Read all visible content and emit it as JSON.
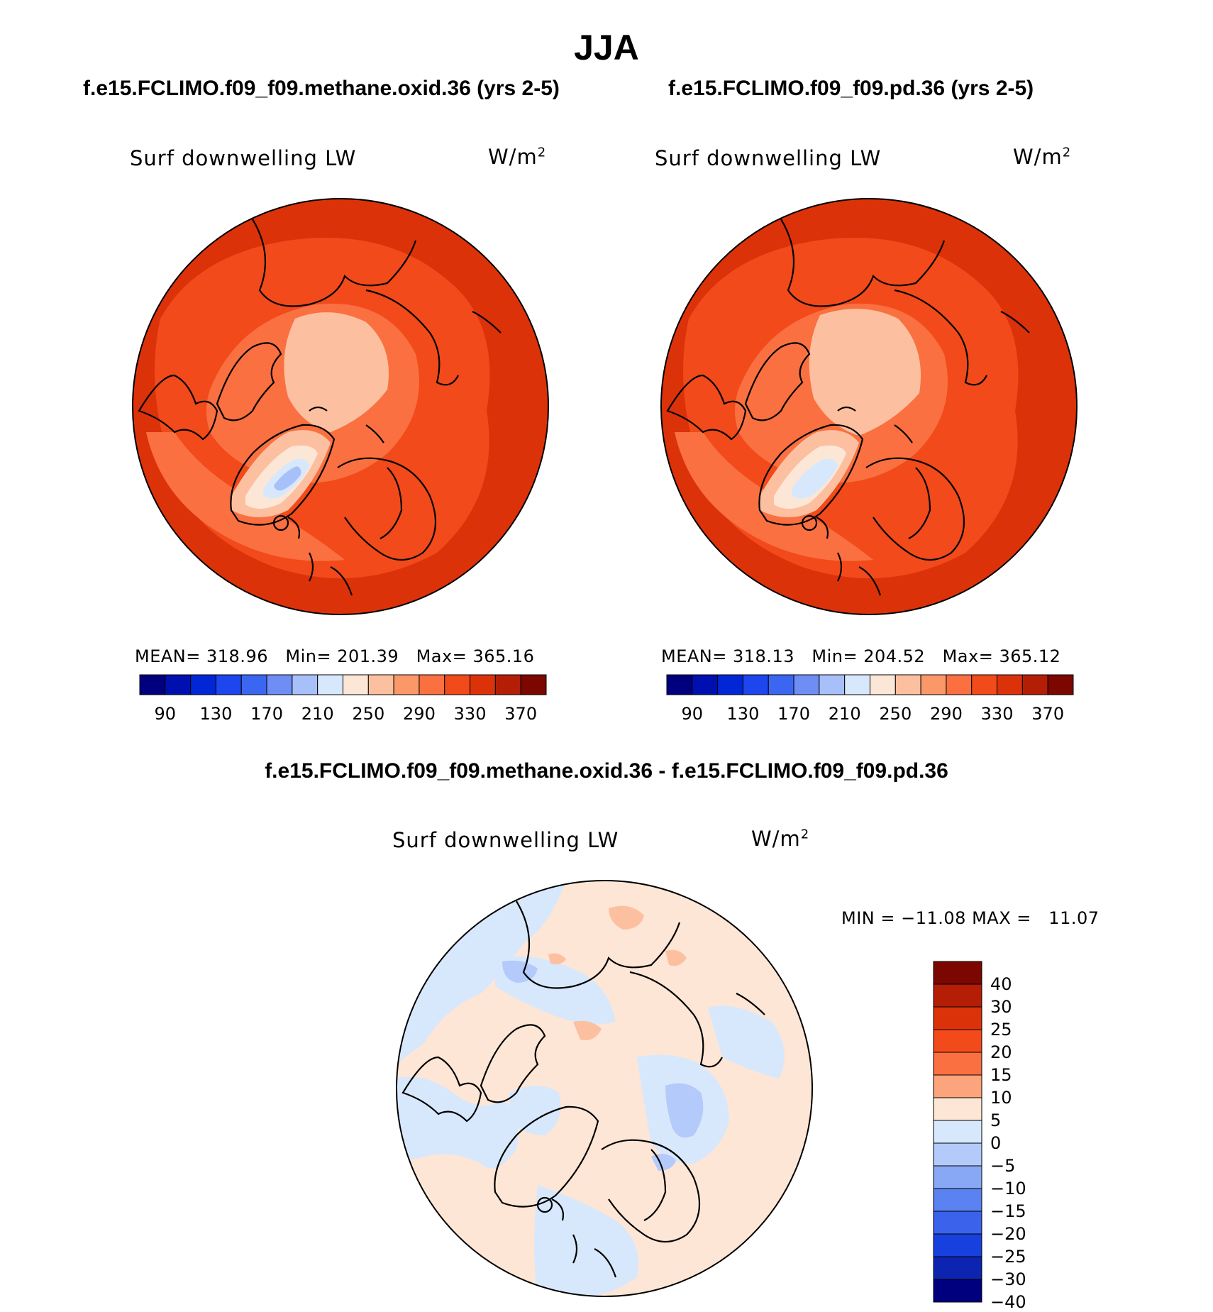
{
  "main_title": "JJA",
  "panels": [
    {
      "case_title": "f.e15.FCLIMO.f09_f09.methane.oxid.36 (yrs 2-5)",
      "variable": "Surf downwelling LW",
      "units_base": "W/m",
      "units_exp": "2",
      "stats": {
        "mean_label": "MEAN=",
        "mean": "318.96",
        "min_label": "Min=",
        "min": "201.39",
        "max_label": "Max=",
        "max": "365.16"
      }
    },
    {
      "case_title": "f.e15.FCLIMO.f09_f09.pd.36 (yrs 2-5)",
      "variable": "Surf downwelling LW",
      "units_base": "W/m",
      "units_exp": "2",
      "stats": {
        "mean_label": "MEAN=",
        "mean": "318.13",
        "min_label": "Min=",
        "min": "204.52",
        "max_label": "Max=",
        "max": "365.12"
      }
    }
  ],
  "field_colorbar": {
    "tick_labels": [
      "90",
      "130",
      "170",
      "210",
      "250",
      "290",
      "330",
      "370"
    ],
    "colors": [
      "#00007f",
      "#0010b0",
      "#0026d6",
      "#1e46ee",
      "#3a66f2",
      "#6e8ef6",
      "#a8c0fa",
      "#d8e8fc",
      "#fce6d6",
      "#fcc0a0",
      "#fb9868",
      "#fa7040",
      "#f24a1a",
      "#dc320a",
      "#b41e06",
      "#7c0600"
    ]
  },
  "difference": {
    "title": "f.e15.FCLIMO.f09_f09.methane.oxid.36 - f.e15.FCLIMO.f09_f09.pd.36",
    "variable": "Surf downwelling LW",
    "units_base": "W/m",
    "units_exp": "2",
    "min_label": "MIN =",
    "min": "−11.08",
    "max_label": "MAX =",
    "max": "11.07",
    "colorbar": {
      "tick_labels": [
        "40",
        "30",
        "25",
        "20",
        "15",
        "10",
        "5",
        "0",
        "−5",
        "−10",
        "−15",
        "−20",
        "−25",
        "−30",
        "−40"
      ],
      "colors_top_to_bottom": [
        "#7c0600",
        "#b41e06",
        "#dc320a",
        "#f24a1a",
        "#fa7040",
        "#fca47c",
        "#fde6d6",
        "#d8e8fc",
        "#b4cafa",
        "#88a8f6",
        "#5a82f0",
        "#3a62ea",
        "#1840de",
        "#0c24b0",
        "#00007f"
      ]
    }
  },
  "map_colors": {
    "outer": "#dc320a",
    "ocean": "#f24a1a",
    "arctic": "#fa7040",
    "icecap": "#fcc0a0",
    "greenland_edge": "#fce6d6",
    "greenland_in": "#d8e8fc",
    "greenland_core": "#a8c0fa",
    "diff_pos": "#fde6d6",
    "diff_neg": "#d8e8fc",
    "diff_neg2": "#b4cafa",
    "diff_pos2": "#fcc0a0"
  }
}
